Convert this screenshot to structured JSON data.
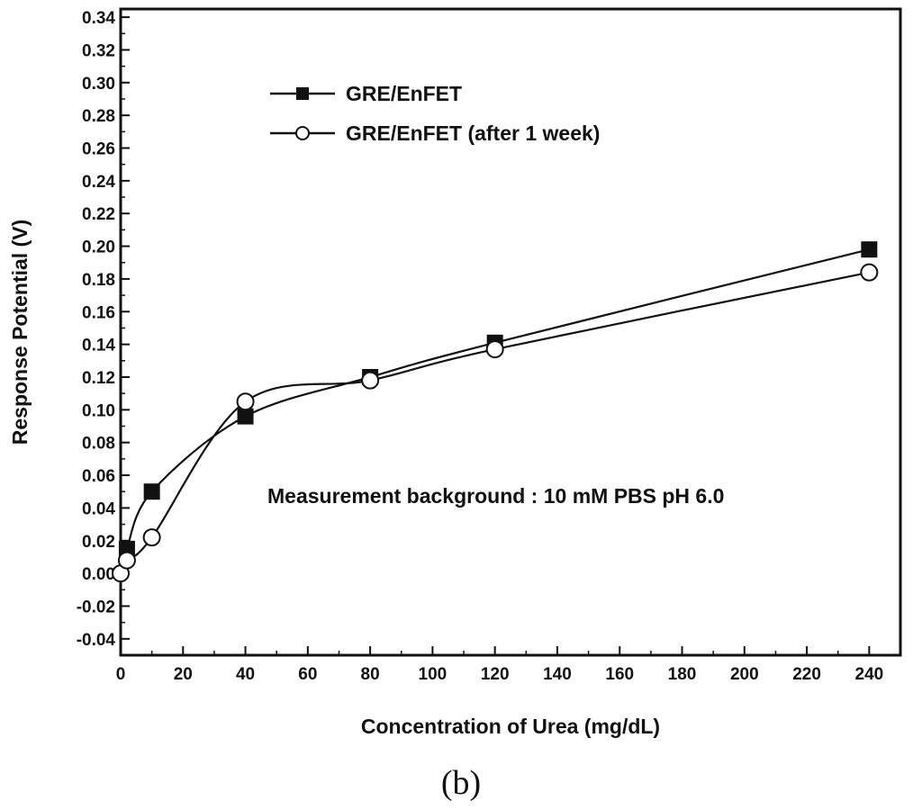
{
  "panel_label": "(b)",
  "chart_data": {
    "type": "line",
    "xlabel": "Concentration of Urea (mg/dL)",
    "ylabel": "Response Potential (V)",
    "xlim": [
      0,
      250
    ],
    "ylim": [
      -0.05,
      0.345
    ],
    "x_ticks": [
      0,
      20,
      40,
      60,
      80,
      100,
      120,
      140,
      160,
      180,
      200,
      220,
      240
    ],
    "y_ticks": [
      -0.04,
      -0.02,
      0.0,
      0.02,
      0.04,
      0.06,
      0.08,
      0.1,
      0.12,
      0.14,
      0.16,
      0.18,
      0.2,
      0.22,
      0.24,
      0.26,
      0.28,
      0.3,
      0.32,
      0.34
    ],
    "x_tick_labels": [
      "0",
      "20",
      "40",
      "60",
      "80",
      "100",
      "120",
      "140",
      "160",
      "180",
      "200",
      "220",
      "240"
    ],
    "y_tick_labels": [
      "-0.04",
      "-0.02",
      "0.00",
      "0.02",
      "0.04",
      "0.06",
      "0.08",
      "0.10",
      "0.12",
      "0.14",
      "0.16",
      "0.18",
      "0.20",
      "0.22",
      "0.24",
      "0.26",
      "0.28",
      "0.30",
      "0.32",
      "0.34"
    ],
    "grid": false,
    "legend_position": "top-left",
    "annotation": "Measurement background : 10 mM PBS pH 6.0",
    "series": [
      {
        "name": "GRE/EnFET",
        "marker": "filled-square",
        "x": [
          2,
          10,
          40,
          80,
          120,
          240
        ],
        "y": [
          0.015,
          0.05,
          0.096,
          0.12,
          0.141,
          0.198
        ]
      },
      {
        "name": "GRE/EnFET (after 1 week)",
        "marker": "open-circle",
        "x": [
          0,
          2,
          10,
          40,
          80,
          120,
          240
        ],
        "y": [
          0.0,
          0.008,
          0.022,
          0.105,
          0.118,
          0.137,
          0.184
        ]
      }
    ]
  }
}
